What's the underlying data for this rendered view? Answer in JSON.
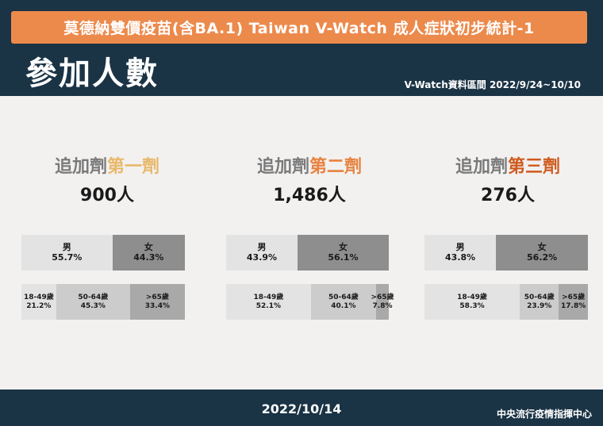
{
  "header": {
    "title": "莫德納雙價疫苗(含BA.1) Taiwan V-Watch 成人症狀初步統計-1",
    "section_title": "參加人數",
    "date_range": "V-Watch資料區間 2022/9/24~10/10"
  },
  "colors": {
    "header_bg": "#1a3345",
    "title_box": "#ec8a4c",
    "dose1_accent": "#e8b86a",
    "dose2_accent": "#e7823f",
    "dose3_accent": "#cf5a1d"
  },
  "columns": [
    {
      "prefix": "追加劑",
      "dose": "第一劑",
      "count": "900人",
      "gender": [
        {
          "label": "男",
          "value": "55.7%",
          "fraction": 0.557
        },
        {
          "label": "女",
          "value": "44.3%",
          "fraction": 0.443
        }
      ],
      "age": [
        {
          "label": "18-49歲",
          "value": "21.2%",
          "fraction": 0.212
        },
        {
          "label": "50-64歲",
          "value": "45.3%",
          "fraction": 0.453
        },
        {
          "label": ">65歲",
          "value": "33.4%",
          "fraction": 0.334
        }
      ]
    },
    {
      "prefix": "追加劑",
      "dose": "第二劑",
      "count": "1,486人",
      "gender": [
        {
          "label": "男",
          "value": "43.9%",
          "fraction": 0.439
        },
        {
          "label": "女",
          "value": "56.1%",
          "fraction": 0.561
        }
      ],
      "age": [
        {
          "label": "18-49歲",
          "value": "52.1%",
          "fraction": 0.521
        },
        {
          "label": "50-64歲",
          "value": "40.1%",
          "fraction": 0.401
        },
        {
          "label": ">65歲",
          "value": "7.8%",
          "fraction": 0.078
        }
      ]
    },
    {
      "prefix": "追加劑",
      "dose": "第三劑",
      "count": "276人",
      "gender": [
        {
          "label": "男",
          "value": "43.8%",
          "fraction": 0.438
        },
        {
          "label": "女",
          "value": "56.2%",
          "fraction": 0.562
        }
      ],
      "age": [
        {
          "label": "18-49歲",
          "value": "58.3%",
          "fraction": 0.583
        },
        {
          "label": "50-64歲",
          "value": "23.9%",
          "fraction": 0.239
        },
        {
          "label": ">65歲",
          "value": "17.8%",
          "fraction": 0.178
        }
      ]
    }
  ],
  "footer": {
    "date": "2022/10/14",
    "org": "中央流行疫情指揮中心"
  }
}
